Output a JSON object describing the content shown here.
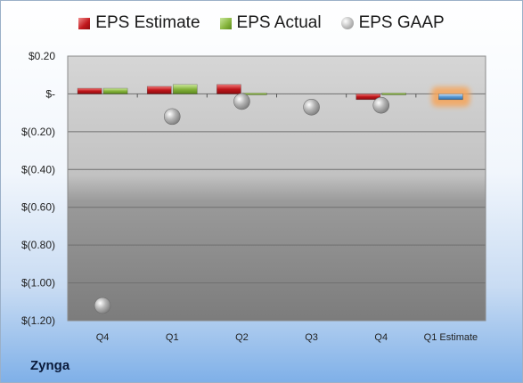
{
  "company": "Zynga",
  "chart_data": {
    "type": "bar",
    "categories": [
      "Q4",
      "Q1",
      "Q2",
      "Q3",
      "Q4",
      "Q1 Estimate"
    ],
    "series": [
      {
        "name": "EPS Estimate",
        "values": [
          0.03,
          0.04,
          0.05,
          null,
          -0.03,
          -0.03
        ],
        "color": "#c0161b"
      },
      {
        "name": "EPS Actual",
        "values": [
          0.03,
          0.05,
          0.0,
          null,
          0.0,
          null
        ],
        "color": "#7fae3a"
      },
      {
        "name": "EPS GAAP",
        "values": [
          -1.12,
          -0.12,
          -0.04,
          -0.07,
          -0.06,
          null
        ],
        "color": "#a8a8a8",
        "marker": "circle"
      }
    ],
    "estimate_highlight_color": "#5b9bd5",
    "ylim": [
      -1.2,
      0.2
    ],
    "yticks": [
      0.2,
      0.0,
      -0.2,
      -0.4,
      -0.6,
      -0.8,
      -1.0,
      -1.2
    ],
    "ytick_labels": [
      "$0.20",
      "$-",
      "$(0.20)",
      "$(0.40)",
      "$(0.60)",
      "$(0.80)",
      "$(1.00)",
      "$(1.20)"
    ],
    "grid": true,
    "legend": "top"
  }
}
